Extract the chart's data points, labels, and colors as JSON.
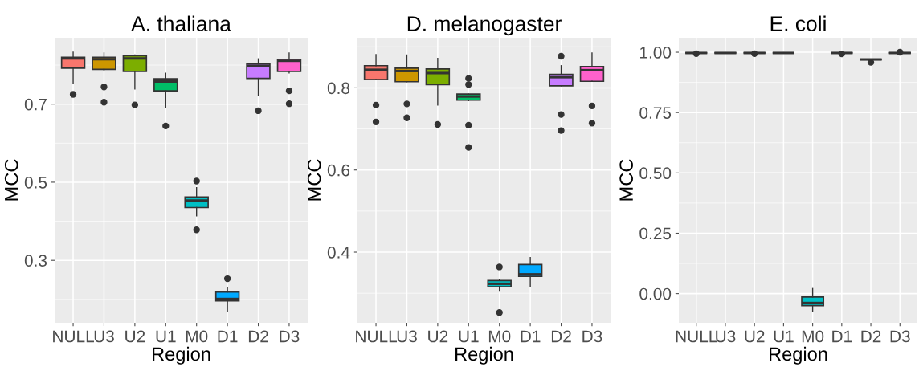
{
  "chart_data": [
    {
      "type": "box",
      "title": "A. thaliana",
      "xlabel": "Region",
      "ylabel": "MCC",
      "categories": [
        "NULL",
        "U3",
        "U2",
        "U1",
        "M0",
        "D1",
        "D2",
        "D3"
      ],
      "colors": [
        "#f8766d",
        "#cd9600",
        "#7cae00",
        "#00be67",
        "#00bfc4",
        "#00a9ff",
        "#c77cff",
        "#ff61cc"
      ],
      "ylim": [
        0.14,
        0.87
      ],
      "yticks": [
        {
          "value": 0.3,
          "label": "0.3"
        },
        {
          "value": 0.5,
          "label": "0.5"
        },
        {
          "value": 0.7,
          "label": "0.7"
        }
      ],
      "grid": true,
      "boxes": [
        {
          "low": 0.753,
          "q1": 0.792,
          "median": 0.817,
          "q3": 0.82,
          "high": 0.833,
          "outliers": [
            0.725
          ]
        },
        {
          "low": 0.785,
          "q1": 0.789,
          "median": 0.815,
          "q3": 0.82,
          "high": 0.831,
          "outliers": [
            0.744,
            0.705
          ]
        },
        {
          "low": 0.739,
          "q1": 0.784,
          "median": 0.817,
          "q3": 0.824,
          "high": 0.826,
          "outliers": [
            0.698
          ]
        },
        {
          "low": 0.692,
          "q1": 0.734,
          "median": 0.758,
          "q3": 0.765,
          "high": 0.779,
          "outliers": [
            0.644
          ]
        },
        {
          "low": 0.414,
          "q1": 0.435,
          "median": 0.453,
          "q3": 0.462,
          "high": 0.486,
          "outliers": [
            0.503,
            0.378
          ]
        },
        {
          "low": 0.169,
          "q1": 0.196,
          "median": 0.201,
          "q3": 0.219,
          "high": 0.229,
          "outliers": [
            0.253
          ]
        },
        {
          "low": 0.722,
          "q1": 0.766,
          "median": 0.798,
          "q3": 0.803,
          "high": 0.816,
          "outliers": [
            0.683
          ]
        },
        {
          "low": 0.78,
          "q1": 0.784,
          "median": 0.811,
          "q3": 0.815,
          "high": 0.831,
          "outliers": [
            0.734,
            0.701
          ]
        }
      ]
    },
    {
      "type": "box",
      "title": "D. melanogaster",
      "xlabel": "Region",
      "ylabel": "MCC",
      "categories": [
        "NULL",
        "U3",
        "U2",
        "U1",
        "M0",
        "D1",
        "D2",
        "D3"
      ],
      "colors": [
        "#f8766d",
        "#cd9600",
        "#7cae00",
        "#00be67",
        "#00bfc4",
        "#00a9ff",
        "#c77cff",
        "#ff61cc"
      ],
      "ylim": [
        0.228,
        0.922
      ],
      "yticks": [
        {
          "value": 0.4,
          "label": "0.4"
        },
        {
          "value": 0.6,
          "label": "0.6"
        },
        {
          "value": 0.8,
          "label": "0.8"
        }
      ],
      "grid": true,
      "boxes": [
        {
          "low": 0.82,
          "q1": 0.82,
          "median": 0.844,
          "q3": 0.854,
          "high": 0.881,
          "outliers": [
            0.758,
            0.717
          ]
        },
        {
          "low": 0.815,
          "q1": 0.815,
          "median": 0.841,
          "q3": 0.848,
          "high": 0.88,
          "outliers": [
            0.761,
            0.727
          ]
        },
        {
          "low": 0.758,
          "q1": 0.808,
          "median": 0.836,
          "q3": 0.846,
          "high": 0.872,
          "outliers": [
            0.711
          ]
        },
        {
          "low": 0.769,
          "q1": 0.77,
          "median": 0.779,
          "q3": 0.785,
          "high": 0.785,
          "outliers": [
            0.823,
            0.808,
            0.709,
            0.655
          ]
        },
        {
          "low": 0.305,
          "q1": 0.316,
          "median": 0.323,
          "q3": 0.331,
          "high": 0.332,
          "outliers": [
            0.364,
            0.253
          ]
        },
        {
          "low": 0.317,
          "q1": 0.341,
          "median": 0.346,
          "q3": 0.37,
          "high": 0.387
        },
        {
          "low": 0.805,
          "q1": 0.805,
          "median": 0.826,
          "q3": 0.833,
          "high": 0.854,
          "outliers": [
            0.877,
            0.735,
            0.696
          ]
        },
        {
          "low": 0.816,
          "q1": 0.816,
          "median": 0.843,
          "q3": 0.852,
          "high": 0.885,
          "outliers": [
            0.756,
            0.714
          ]
        }
      ]
    },
    {
      "type": "box",
      "title": "E. coli",
      "xlabel": "Region",
      "ylabel": "MCC",
      "categories": [
        "NULL",
        "U3",
        "U2",
        "U1",
        "M0",
        "D1",
        "D2",
        "D3"
      ],
      "colors": [
        "#333333",
        "#333333",
        "#333333",
        "#333333",
        "#00bfc4",
        "#333333",
        "#333333",
        "#333333"
      ],
      "ylim": [
        -0.121,
        1.06
      ],
      "yticks": [
        {
          "value": 0,
          "label": "0.00"
        },
        {
          "value": 0.25,
          "label": "0.25"
        },
        {
          "value": 0.5,
          "label": "0.50"
        },
        {
          "value": 0.75,
          "label": "0.75"
        },
        {
          "value": 1,
          "label": "1.00"
        }
      ],
      "grid": true,
      "boxes": [
        {
          "low": 0.997,
          "q1": 0.997,
          "median": 0.997,
          "q3": 0.997,
          "high": 0.997,
          "outliers": [
            0.994
          ]
        },
        {
          "low": 0.997,
          "q1": 0.997,
          "median": 0.997,
          "q3": 0.997,
          "high": 0.997
        },
        {
          "low": 0.997,
          "q1": 0.997,
          "median": 0.997,
          "q3": 0.997,
          "high": 0.997,
          "outliers": [
            0.994
          ]
        },
        {
          "low": 0.997,
          "q1": 0.997,
          "median": 0.997,
          "q3": 0.997,
          "high": 0.997
        },
        {
          "low": -0.075,
          "q1": -0.05,
          "median": -0.039,
          "q3": -0.014,
          "high": 0.021
        },
        {
          "low": 0.997,
          "q1": 0.997,
          "median": 0.997,
          "q3": 0.997,
          "high": 0.997,
          "outliers": [
            0.993
          ]
        },
        {
          "low": 0.97,
          "q1": 0.97,
          "median": 0.97,
          "q3": 0.97,
          "high": 0.97,
          "outliers": [
            0.958
          ]
        },
        {
          "low": 0.997,
          "q1": 0.997,
          "median": 0.997,
          "q3": 0.997,
          "high": 0.997,
          "outliers": [
            1.0
          ]
        }
      ]
    }
  ]
}
